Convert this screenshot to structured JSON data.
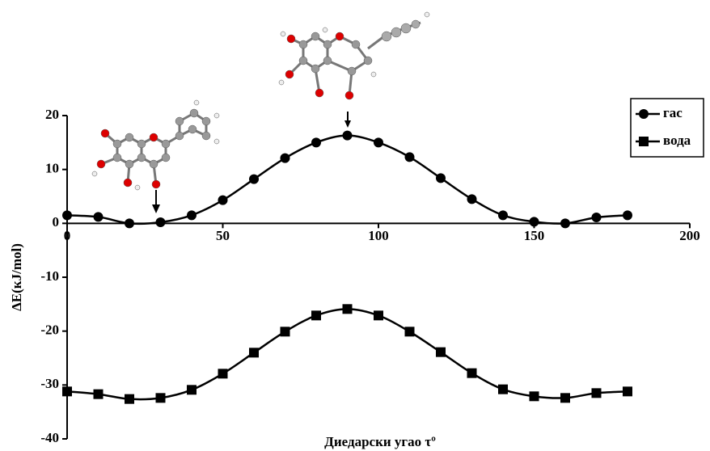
{
  "chart_data": {
    "type": "line",
    "x": [
      0,
      10,
      20,
      30,
      40,
      50,
      60,
      70,
      80,
      90,
      100,
      110,
      120,
      130,
      140,
      150,
      160,
      170,
      180
    ],
    "series": [
      {
        "name": "гас",
        "color": "#000000",
        "marker": "circle",
        "values": [
          1.5,
          1.2,
          0,
          0.2,
          1.5,
          4.3,
          8.2,
          12.1,
          15,
          16.3,
          15,
          12.3,
          8.4,
          4.5,
          1.5,
          0.3,
          0,
          1.1,
          1.5
        ]
      },
      {
        "name": "вода",
        "color": "#000000",
        "marker": "square",
        "values": [
          -31.2,
          -31.7,
          -32.6,
          -32.4,
          -30.9,
          -27.9,
          -24,
          -20.1,
          -17.1,
          -15.9,
          -17.1,
          -20.1,
          -23.9,
          -27.8,
          -30.8,
          -32.1,
          -32.4,
          -31.5,
          -31.2
        ]
      }
    ],
    "xlabel": "Диедарски угао τº",
    "ylabel": "ΔE(кJ/mol)",
    "xlim": [
      0,
      200
    ],
    "xticks": [
      0,
      50,
      100,
      150,
      200
    ],
    "ylim": [
      -40,
      20
    ],
    "yticks": [
      -40,
      -30,
      -20,
      -10,
      0,
      10,
      20
    ],
    "legend": "top-right"
  }
}
